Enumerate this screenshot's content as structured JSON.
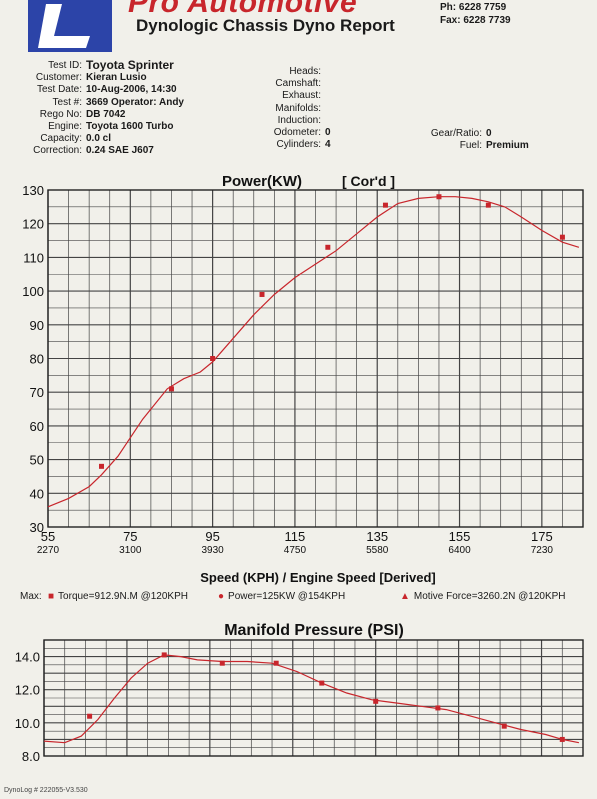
{
  "header": {
    "brand": "Pro Automotive",
    "title": "Dynologic Chassis Dyno Report",
    "phone": "Ph: 6228 7759",
    "fax": "Fax: 6228 7739"
  },
  "info_left": [
    {
      "label": "Test ID:",
      "value": "Toyota Sprinter"
    },
    {
      "label": "Customer:",
      "value": "Kieran Lusio"
    },
    {
      "label": "Test Date:",
      "value": "10-Aug-2006, 14:30"
    },
    {
      "label": "Test #:",
      "value": "3669 Operator: Andy"
    },
    {
      "label": "Rego No:",
      "value": "DB 7042"
    },
    {
      "label": "Engine:",
      "value": "Toyota 1600 Turbo"
    },
    {
      "label": "Capacity:",
      "value": "0.0 cl"
    },
    {
      "label": "Correction:",
      "value": "0.24 SAE J607"
    }
  ],
  "info_mid": [
    {
      "label": "Heads:",
      "value": ""
    },
    {
      "label": "Camshaft:",
      "value": ""
    },
    {
      "label": "Exhaust:",
      "value": ""
    },
    {
      "label": "Manifolds:",
      "value": ""
    },
    {
      "label": "Induction:",
      "value": ""
    },
    {
      "label": "Odometer:",
      "value": "0"
    },
    {
      "label": "Cylinders:",
      "value": "4"
    }
  ],
  "info_right": [
    {
      "label": "Gear/Ratio:",
      "value": "0"
    },
    {
      "label": "Fuel:",
      "value": "Premium"
    }
  ],
  "legend": {
    "torque": "Torque=912.9N.M @120KPH",
    "power": "Power=125KW @154KPH",
    "force": "Motive Force=3260.2N @120KPH"
  },
  "footer": "DynoLog # 222055-V3.530",
  "colors": {
    "curve": "#c8262c",
    "grid": "#444444",
    "logo": "#2c44a8"
  },
  "chart_data": [
    {
      "type": "line",
      "title": "Power(KW)",
      "subtitle": "[ Cor'd ]",
      "xlabel": "Speed (KPH) / Engine Speed [Derived]",
      "ylim": [
        30,
        130
      ],
      "xlim": [
        55,
        185
      ],
      "x_ticks": [
        55,
        75,
        95,
        115,
        135,
        155,
        175
      ],
      "x_tick_sub": [
        "2270",
        "3100",
        "3930",
        "4750",
        "5580",
        "6400",
        "7230"
      ],
      "y_ticks": [
        30,
        40,
        50,
        60,
        70,
        80,
        90,
        100,
        110,
        120,
        130
      ],
      "series": [
        {
          "name": "Power",
          "x": [
            55,
            60,
            65,
            68,
            72,
            78,
            84,
            88,
            92,
            95,
            100,
            105,
            110,
            115,
            120,
            125,
            130,
            135,
            140,
            145,
            150,
            154,
            158,
            162,
            166,
            170,
            175,
            180,
            184
          ],
          "y": [
            36,
            38.5,
            42,
            45.5,
            51,
            62,
            71,
            74,
            76,
            79,
            86,
            93,
            99,
            104,
            108,
            112,
            117,
            122,
            126,
            127.5,
            128,
            128,
            127.5,
            126.5,
            125,
            122,
            118,
            114.5,
            113
          ],
          "markers_x": [
            68,
            85,
            95,
            107,
            123,
            137,
            150,
            162,
            180
          ],
          "markers_y": [
            48,
            71,
            80,
            99,
            113,
            125.5,
            128,
            125.5,
            116
          ]
        }
      ]
    },
    {
      "type": "line",
      "title": "Manifold Pressure (PSI)",
      "ylim": [
        8.0,
        15.0
      ],
      "xlim": [
        55,
        185
      ],
      "y_ticks": [
        8.0,
        10.0,
        12.0,
        14.0
      ],
      "series": [
        {
          "name": "Manifold Pressure",
          "x": [
            55,
            60,
            64,
            68,
            72,
            76,
            80,
            84,
            88,
            92,
            98,
            104,
            110,
            116,
            122,
            128,
            134,
            140,
            146,
            152,
            158,
            164,
            170,
            176,
            180,
            184
          ],
          "y": [
            8.9,
            8.8,
            9.2,
            10.2,
            11.5,
            12.7,
            13.6,
            14.1,
            14.0,
            13.8,
            13.7,
            13.7,
            13.6,
            13.1,
            12.4,
            11.8,
            11.4,
            11.2,
            11.0,
            10.8,
            10.4,
            10.0,
            9.6,
            9.3,
            9.0,
            8.8
          ],
          "markers_x": [
            66,
            84,
            98,
            111,
            122,
            135,
            150,
            166,
            180
          ],
          "markers_y": [
            10.4,
            14.1,
            13.6,
            13.6,
            12.4,
            11.3,
            10.9,
            9.8,
            9.0
          ]
        }
      ]
    }
  ]
}
